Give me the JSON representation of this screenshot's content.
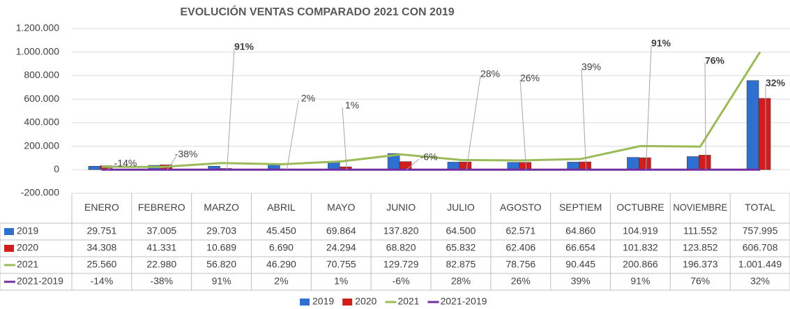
{
  "chart_data": {
    "type": "bar-line-table",
    "title": "EVOLUCIÓN VENTAS COMPARADO 2021 CON 2019",
    "categories": [
      "ENERO",
      "FEBRERO",
      "MARZO",
      "ABRIL",
      "MAYO",
      "JUNIO",
      "JULIO",
      "AGOSTO",
      "SEPTIEM",
      "OCTUBRE",
      "NOVIEMBRE",
      "TOTAL"
    ],
    "ylim": [
      -200000,
      1200000
    ],
    "yticks": [
      {
        "value": -200000,
        "label": "-200.000"
      },
      0,
      {
        "value": 200000,
        "label": "200.000"
      },
      {
        "value": 400000,
        "label": "400.000"
      },
      {
        "value": 600000,
        "label": "600.000"
      },
      {
        "value": 800000,
        "label": "800.000"
      },
      {
        "value": 1000000,
        "label": "1.000.000"
      },
      {
        "value": 1200000,
        "label": "1.200.000"
      }
    ],
    "grid": true,
    "series": [
      {
        "name": "2019",
        "kind": "bar",
        "color": "#2f6fd0",
        "values": [
          29751,
          37005,
          29703,
          45450,
          69864,
          137820,
          64500,
          62571,
          64860,
          104919,
          111552,
          757995
        ],
        "value_labels": [
          "29.751",
          "37.005",
          "29.703",
          "45.450",
          "69.864",
          "137.820",
          "64.500",
          "62.571",
          "64.860",
          "104.919",
          "111.552",
          "757.995"
        ]
      },
      {
        "name": "2020",
        "kind": "bar",
        "color": "#d01e1e",
        "values": [
          34308,
          41331,
          10689,
          6690,
          24294,
          68820,
          65832,
          62406,
          66654,
          101832,
          123852,
          606708
        ],
        "value_labels": [
          "34.308",
          "41.331",
          "10.689",
          "6.690",
          "24.294",
          "68.820",
          "65.832",
          "62.406",
          "66.654",
          "101.832",
          "123.852",
          "606.708"
        ]
      },
      {
        "name": "2021",
        "kind": "line",
        "color": "#9bbb59",
        "values": [
          25560,
          22980,
          56820,
          46290,
          70755,
          129729,
          82875,
          78756,
          90445,
          200866,
          196373,
          1001449
        ],
        "value_labels": [
          "25.560",
          "22.980",
          "56.820",
          "46.290",
          "70.755",
          "129.729",
          "82.875",
          "78.756",
          "90.445",
          "200.866",
          "196.373",
          "1.001.449"
        ]
      },
      {
        "name": "2021-2019",
        "kind": "line",
        "color": "#7030a0",
        "values": [
          -0.14,
          -0.38,
          0.91,
          0.02,
          0.01,
          -0.06,
          0.28,
          0.26,
          0.39,
          0.91,
          0.76,
          0.32
        ],
        "value_labels": [
          "-14%",
          "-38%",
          "91%",
          "2%",
          "1%",
          "-6%",
          "28%",
          "26%",
          "39%",
          "91%",
          "76%",
          "32%"
        ]
      }
    ]
  }
}
